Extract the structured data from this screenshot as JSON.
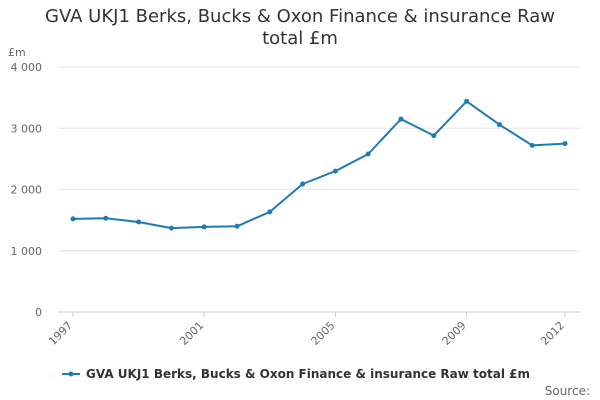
{
  "chart_data": {
    "type": "line",
    "title_line1": "GVA UKJ1 Berks, Bucks & Oxon Finance & insurance Raw",
    "title_line2": "total £m",
    "ylabel": "£m",
    "ylim": [
      0,
      4000
    ],
    "yticks": [
      0,
      1000,
      2000,
      3000,
      4000
    ],
    "ytick_labels": [
      "0",
      "1 000",
      "2 000",
      "3 000",
      "4 000"
    ],
    "xlim": [
      1997,
      2012
    ],
    "xticks": [
      1997,
      2001,
      2005,
      2009,
      2012
    ],
    "xtick_labels": [
      "1997",
      "2001",
      "2005",
      "2009",
      "2012"
    ],
    "grid": "horizontal",
    "legend_position": "bottom",
    "series": [
      {
        "name": "GVA UKJ1 Berks, Bucks & Oxon Finance & insurance Raw total £m",
        "color": "#1f7ab8",
        "x": [
          1997,
          1998,
          1999,
          2000,
          2001,
          2002,
          2003,
          2004,
          2005,
          2006,
          2007,
          2008,
          2009,
          2010,
          2011,
          2012
        ],
        "values": [
          1520,
          1530,
          1470,
          1370,
          1390,
          1400,
          1635,
          2090,
          2300,
          2580,
          3150,
          2880,
          3440,
          3060,
          2720,
          2750
        ]
      }
    ],
    "source_label": "Source:"
  }
}
